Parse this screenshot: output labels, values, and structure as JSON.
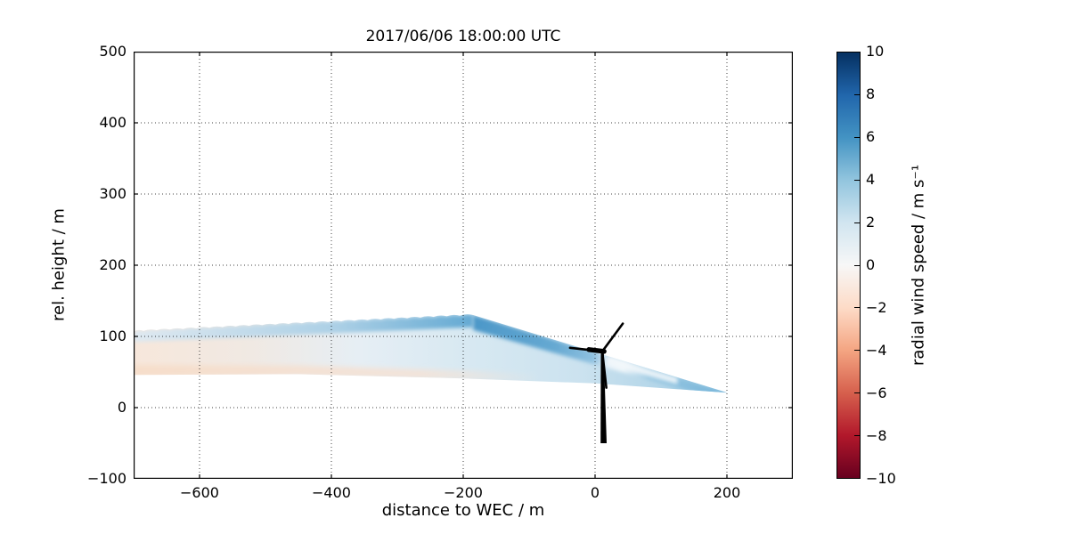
{
  "figure": {
    "title": "2017/06/06 18:00:00 UTC",
    "background": "#ffffff"
  },
  "axes": {
    "xlabel": "distance to WEC / m",
    "ylabel": "rel. height / m",
    "xtick_labels": [
      "−600",
      "−400",
      "−200",
      "0",
      "200"
    ],
    "ytick_labels": [
      "500",
      "400",
      "300",
      "200",
      "100",
      "0",
      "−100"
    ]
  },
  "colorbar": {
    "label": "radial wind speed / m s⁻¹",
    "tick_labels": [
      "10",
      "8",
      "6",
      "4",
      "2",
      "0",
      "−2",
      "−4",
      "−6",
      "−8",
      "−10"
    ],
    "cmap_name": "RdBu",
    "vmin": -10,
    "vmax": 10,
    "colors_top_to_bottom": [
      "#053061",
      "#2166ac",
      "#4393c3",
      "#92c5de",
      "#d1e5f0",
      "#f7f7f7",
      "#fddbc7",
      "#f4a582",
      "#d6604d",
      "#b2182b",
      "#67001f"
    ]
  },
  "chart_data": {
    "type": "heatmap",
    "title": "2017/06/06 18:00:00 UTC",
    "xlabel": "distance to WEC / m",
    "ylabel": "rel. height / m",
    "xlim": [
      -700,
      300
    ],
    "ylim": [
      -100,
      500
    ],
    "xticks": [
      -600,
      -400,
      -200,
      0,
      200
    ],
    "yticks": [
      500,
      400,
      300,
      200,
      100,
      0,
      -100
    ],
    "grid": true,
    "legend": "none",
    "colorbar": {
      "label": "radial wind speed / m s⁻¹",
      "vmin": -10,
      "vmax": 10,
      "ticks": [
        10,
        8,
        6,
        4,
        2,
        0,
        -2,
        -4,
        -6,
        -8,
        -10
      ],
      "cmap": "RdBu"
    },
    "scan": {
      "shape": "fan of overlapping lidar beams converging at a point downstream of the WEC and spreading upstream with scalloped beam ends",
      "apex": {
        "x": 201,
        "h": 21
      },
      "top_peak": {
        "x": -185,
        "h": 130
      },
      "left_edge": {
        "x": -700,
        "h_top": 107,
        "h_bottom": 46
      },
      "bottom_points": [
        [
          -700,
          46
        ],
        [
          -450,
          47
        ],
        [
          -200,
          41
        ],
        [
          0,
          34
        ]
      ],
      "scallop_spacing_m": 20,
      "scallop_height_m": 3,
      "values_mps": [
        {
          "region": "lower left of fan (x < -300, h 40-70 m)",
          "value": -0.5
        },
        {
          "region": "upper scalloped beams (x -700..-200, h 90-115 m)",
          "value": 2
        },
        {
          "region": "band under straight top edge (x -190..0)",
          "value": 4.5
        },
        {
          "region": "streak just downstream of hub (x 0..120, near top edge)",
          "value": 0.5
        },
        {
          "region": "wedge right of WEC (x 0..200)",
          "value": 2.5
        },
        {
          "region": "fan tip at x = 200",
          "value": 3.5
        },
        {
          "region": "interior middle (x -400..-100, h 50-90 m)",
          "value": 1.5
        }
      ]
    },
    "turbine": {
      "hub": [
        11,
        79
      ],
      "tower_base": [
        13,
        -50
      ],
      "blade_tips": [
        [
          42,
          118
        ],
        [
          -38,
          84
        ],
        [
          17,
          28
        ]
      ],
      "color": "#000000"
    }
  },
  "render_colors": {
    "grid_color": "#000000",
    "axis_color": "#000000",
    "body_gradient": [
      [
        "0",
        "#f7e7db"
      ],
      [
        "0.18",
        "#f0e9e3"
      ],
      [
        "0.34",
        "#e6eef4"
      ],
      [
        "0.5",
        "#d8e9f2"
      ],
      [
        "0.68",
        "#cbe2ef"
      ],
      [
        "0.84",
        "#abd1e6"
      ],
      [
        "1",
        "#8ec3df"
      ]
    ],
    "edge_band_gradient": [
      [
        "0",
        "#4b97c8"
      ],
      [
        "0.33",
        "#66a9d2"
      ],
      [
        "0.48",
        "#8fc1e0"
      ],
      [
        "0.54",
        "#e9f2f8"
      ],
      [
        "0.6",
        "#eff6fa"
      ],
      [
        "0.7",
        "#9ac8e2"
      ],
      [
        "1",
        "#74b4d9"
      ]
    ],
    "topleft_band_gradient": [
      [
        "0",
        "#dde9f2"
      ],
      [
        "0.6",
        "#a8cee5"
      ],
      [
        "1",
        "#5ea6d1"
      ]
    ],
    "bottom_pink_gradient": [
      [
        "0",
        "#f6dcc8"
      ],
      [
        "0.7",
        "#f4e3d7"
      ],
      [
        "1",
        "rgba(244,227,215,0)"
      ]
    ],
    "streak_color": "#f2f7fb",
    "turbine_color": "#000000"
  }
}
